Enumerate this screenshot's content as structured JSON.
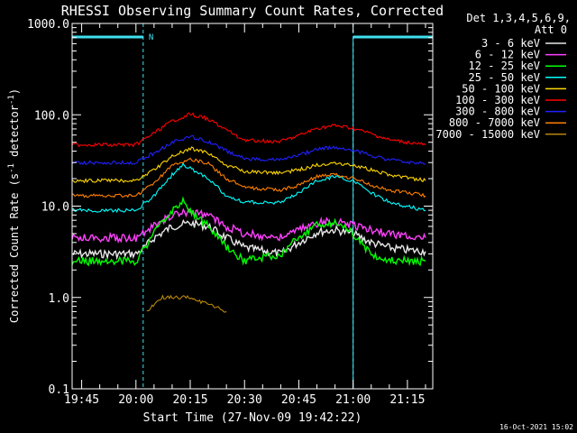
{
  "chart_data": {
    "type": "line",
    "title": "RHESSI Observing Summary Count Rates, Corrected",
    "xlabel": "Start Time (27-Nov-09 19:42:22)",
    "ylabel": "Corrected Count Rate (s",
    "ylabel_sup1": "-1",
    "ylabel_mid": " detector",
    "ylabel_sup2": "-1",
    "ylabel_end": ")",
    "y_scale": "log",
    "ylim": [
      0.1,
      1000
    ],
    "xlim": [
      "19:42:22",
      "21:22:00"
    ],
    "x_ticks": [
      "19:45",
      "20:00",
      "20:15",
      "20:30",
      "20:45",
      "21:00",
      "21:15"
    ],
    "y_ticks": [
      "0.1",
      "1.0",
      "10.0",
      "100.0",
      "1000.0"
    ],
    "legend_placement": "right",
    "legend_header": [
      "Det 1,3,4,5,6,9,",
      "Att 0"
    ],
    "timestamp": "16-Oct-2021 15:02",
    "night_label": "N",
    "grid": false,
    "colors": {
      "background": "#000000",
      "axes": "#ffffff",
      "markers": "#40e0f0"
    },
    "night_intervals": [
      [
        "19:42:22",
        "20:02:00"
      ],
      [
        "21:00:00",
        "21:22:00"
      ]
    ],
    "saa_or_flag_lines": [
      "19:42:22",
      "20:02:00",
      "21:00:00",
      "21:22:00"
    ],
    "series": [
      {
        "name": "3 - 6 keV",
        "color": "#e8e8e8",
        "x": [
          "19:42:22",
          "20:00",
          "20:02",
          "20:05",
          "20:10",
          "20:15",
          "20:20",
          "20:25",
          "20:30",
          "20:40",
          "20:45",
          "20:50",
          "20:55",
          "21:00",
          "21:05",
          "21:10",
          "21:15",
          "21:20"
        ],
        "y": [
          3.0,
          3.0,
          3.4,
          4.5,
          6.0,
          6.5,
          6.0,
          4.5,
          3.5,
          3.0,
          4.0,
          5.2,
          5.5,
          5.0,
          4.0,
          3.5,
          3.3,
          3.2
        ]
      },
      {
        "name": "6 - 12 keV",
        "color": "#ff40ff",
        "x": [
          "19:42:22",
          "20:00",
          "20:05",
          "20:10",
          "20:15",
          "20:20",
          "20:25",
          "20:30",
          "20:40",
          "20:45",
          "20:50",
          "20:55",
          "21:00",
          "21:05",
          "21:10",
          "21:20"
        ],
        "y": [
          4.5,
          4.5,
          6.0,
          8.0,
          8.5,
          8.0,
          6.0,
          5.0,
          4.5,
          5.5,
          6.5,
          6.8,
          6.3,
          5.5,
          5.0,
          4.5
        ]
      },
      {
        "name": "12 - 25 keV",
        "color": "#00ff00",
        "x": [
          "19:42:22",
          "20:00",
          "20:05",
          "20:10",
          "20:13",
          "20:15",
          "20:20",
          "20:25",
          "20:30",
          "20:40",
          "20:45",
          "20:50",
          "20:55",
          "21:00",
          "21:05",
          "21:10",
          "21:20"
        ],
        "y": [
          2.5,
          2.5,
          5.0,
          9.0,
          11.0,
          9.0,
          6.0,
          3.5,
          2.5,
          3.0,
          4.5,
          6.5,
          6.5,
          5.0,
          3.0,
          2.5,
          2.5
        ]
      },
      {
        "name": "25 - 50 keV",
        "color": "#00ffff",
        "x": [
          "19:42:22",
          "20:00",
          "20:05",
          "20:10",
          "20:13",
          "20:15",
          "20:20",
          "20:25",
          "20:30",
          "20:40",
          "20:45",
          "20:50",
          "20:55",
          "21:00",
          "21:05",
          "21:10",
          "21:20"
        ],
        "y": [
          9.0,
          9.0,
          13.0,
          22.0,
          28.0,
          26.0,
          20.0,
          13.0,
          11.0,
          11.0,
          14.0,
          19.0,
          21.0,
          19.0,
          14.0,
          11.0,
          9.0
        ]
      },
      {
        "name": "50 - 100 keV",
        "color": "#ffd700",
        "x": [
          "19:42:22",
          "20:00",
          "20:05",
          "20:10",
          "20:15",
          "20:20",
          "20:25",
          "20:30",
          "20:40",
          "20:45",
          "20:50",
          "20:55",
          "21:00",
          "21:05",
          "21:10",
          "21:20"
        ],
        "y": [
          19.0,
          19.0,
          25.0,
          35.0,
          43.0,
          38.0,
          28.0,
          24.0,
          23.0,
          25.0,
          28.0,
          30.0,
          28.0,
          25.0,
          22.0,
          19.0
        ]
      },
      {
        "name": "100 - 300 keV",
        "color": "#ff0000",
        "x": [
          "19:42:22",
          "20:00",
          "20:05",
          "20:10",
          "20:15",
          "20:20",
          "20:25",
          "20:30",
          "20:40",
          "20:45",
          "20:50",
          "20:55",
          "21:00",
          "21:05",
          "21:10",
          "21:20"
        ],
        "y": [
          47.0,
          47.0,
          63.0,
          85.0,
          102.0,
          90.0,
          68.0,
          53.0,
          51.0,
          59.0,
          71.0,
          76.0,
          71.0,
          62.0,
          53.0,
          47.0
        ]
      },
      {
        "name": "300 - 800 keV",
        "color": "#2020ff",
        "x": [
          "19:42:22",
          "20:00",
          "20:05",
          "20:10",
          "20:15",
          "20:20",
          "20:25",
          "20:30",
          "20:40",
          "20:45",
          "20:50",
          "20:55",
          "21:00",
          "21:05",
          "21:10",
          "21:20"
        ],
        "y": [
          30.0,
          30.0,
          38.0,
          50.0,
          58.0,
          51.0,
          40.0,
          33.0,
          32.0,
          36.0,
          42.0,
          44.0,
          41.0,
          36.0,
          32.0,
          29.0
        ]
      },
      {
        "name": "800 - 7000 keV",
        "color": "#ff7f00",
        "x": [
          "19:42:22",
          "20:00",
          "20:05",
          "20:10",
          "20:15",
          "20:20",
          "20:25",
          "20:30",
          "20:40",
          "20:45",
          "20:50",
          "20:55",
          "21:00",
          "21:05",
          "21:10",
          "21:20"
        ],
        "y": [
          13.0,
          13.0,
          18.0,
          28.0,
          33.0,
          29.0,
          20.0,
          16.0,
          15.0,
          17.0,
          21.0,
          22.0,
          20.0,
          17.0,
          15.0,
          13.0
        ]
      },
      {
        "name": "7000 - 15000 keV",
        "color": "#b8860b",
        "x": [
          "20:03",
          "20:07",
          "20:10",
          "20:15",
          "20:25"
        ],
        "y": [
          0.7,
          1.0,
          1.0,
          1.0,
          0.7
        ]
      }
    ]
  }
}
